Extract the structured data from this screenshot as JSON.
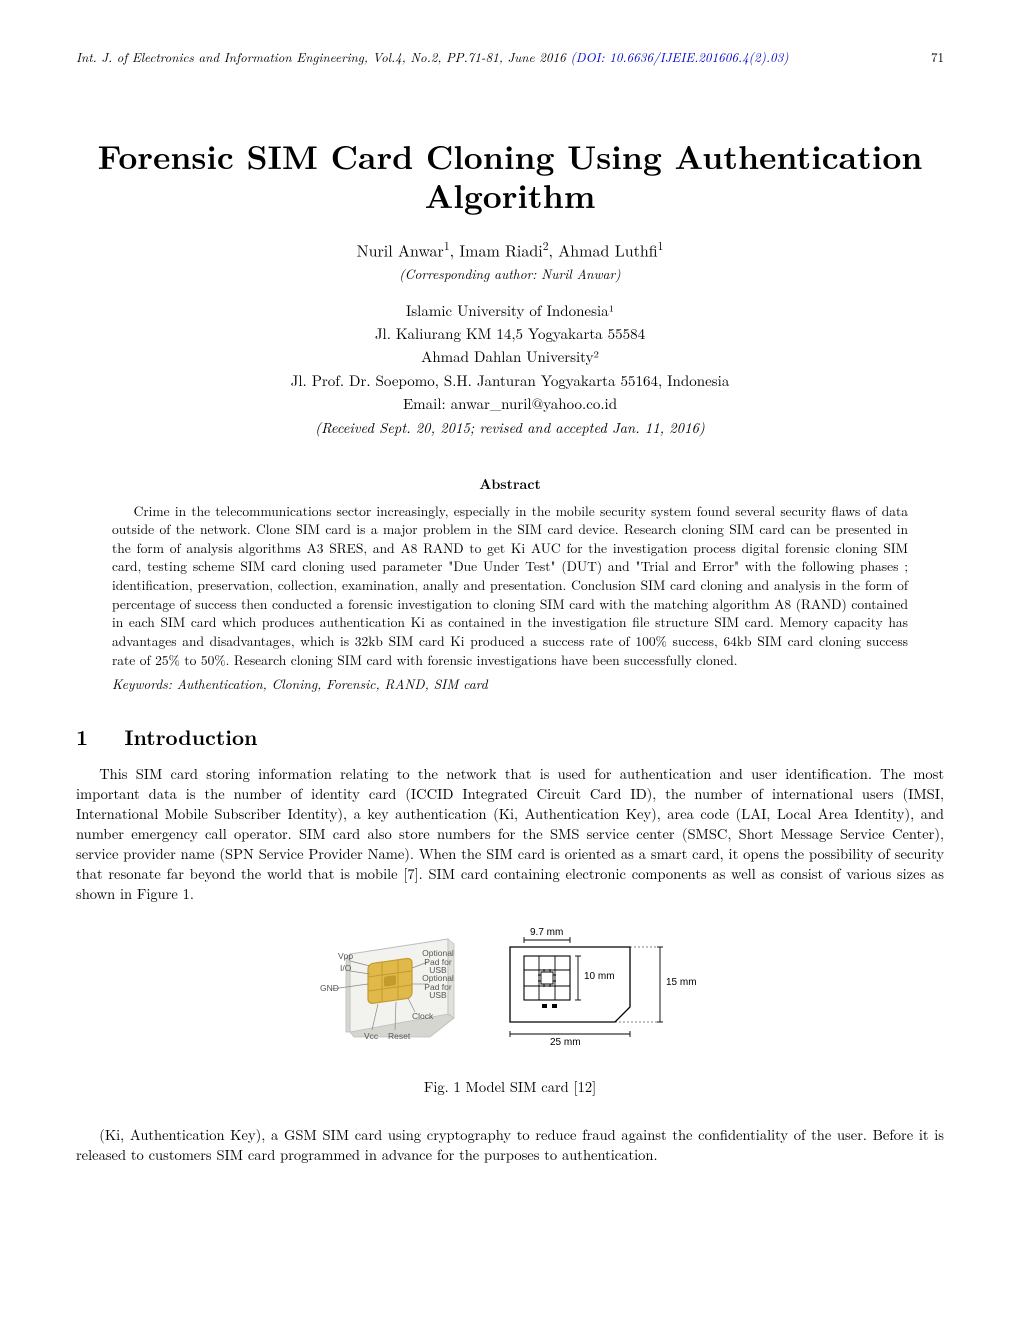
{
  "header": {
    "journal": "Int. J. of Electronics and Information Engineering, Vol.4, No.2, PP.71-81, June 2016 ",
    "doi": "(DOI: 10.6636/IJEIE.201606.4(2).03)",
    "page_number": "71"
  },
  "title": "Forensic SIM Card Cloning Using Authentication Algorithm",
  "authors": {
    "list_html": "Nuril Anwar<sup>1</sup>, Imam Riadi<sup>2</sup>, Ahmad Luthfi<sup>1</sup>",
    "corresponding": "(Corresponding author: Nuril Anwar)"
  },
  "affiliations": {
    "l1": "Islamic University of Indonesia¹",
    "l2": "Jl. Kaliurang KM 14,5 Yogyakarta 55584",
    "l3": "Ahmad Dahlan University²",
    "l4": "Jl. Prof. Dr. Soepomo, S.H. Janturan Yogyakarta 55164, Indonesia",
    "email": "Email: anwar_nuril@yahoo.co.id"
  },
  "received": "(Received Sept. 20, 2015; revised and accepted Jan. 11, 2016)",
  "abstract": {
    "heading": "Abstract",
    "body": "Crime in the telecommunications sector increasingly, especially in the mobile security system found several security flaws of data outside of the network. Clone SIM card is a major problem in the SIM card device. Research cloning SIM card can be presented in the form of analysis algorithms A3 SRES, and A8 RAND to get Ki AUC for the investigation process digital forensic cloning SIM card, testing scheme SIM card cloning used parameter \"Due Under Test\" (DUT) and \"Trial and Error\" with the following phases ; identification, preservation, collection, examination, anally and presentation. Conclusion SIM card cloning and analysis in the form of percentage of success then conducted a forensic investigation to cloning SIM card with the matching algorithm A8 (RAND) contained in each SIM card which produces authentication Ki as contained in the investigation file structure SIM card. Memory capacity has advantages and disadvantages, which is 32kb SIM card Ki produced a success rate of 100% success, 64kb SIM card cloning success rate of 25% to 50%. Research cloning SIM card with forensic investigations have been successfully cloned."
  },
  "keywords": "Keywords: Authentication, Cloning, Forensic, RAND, SIM card",
  "sections": {
    "s1": {
      "number": "1",
      "title": "Introduction",
      "p1": "This SIM card storing information relating to the network that is used for authentication and user identification. The most important data is the number of identity card (ICCID Integrated Circuit Card ID), the number of international users (IMSI, International Mobile Subscriber Identity), a key authentication (Ki, Authentication Key), area code (LAI, Local Area Identity), and number emergency call operator. SIM card also store numbers for the SMS service center (SMSC, Short Message Service Center), service provider name (SPN Service Provider Name). When the SIM card is oriented as a smart card, it opens the possibility of security that resonate far beyond the world that is mobile [7]. SIM card containing electronic components as well as consist of various sizes as shown in Figure 1.",
      "p2": "(Ki, Authentication Key), a GSM SIM card using cryptography to reduce fraud against the confidentiality of the user. Before it is released to customers SIM card programmed in advance for the purposes to authentication."
    }
  },
  "figure1": {
    "caption": "Fig. 1 Model SIM card [12]",
    "labels_3d": {
      "vpp": "Vpp",
      "io": "I/O",
      "optpad1": "Optional Pad for USB",
      "gnd": "GND",
      "optpad2": "Optional Pad for USB",
      "clock": "Clock",
      "vcc": "Vcc",
      "reset": "Reset"
    },
    "dims": {
      "w_small": "9.7 mm",
      "h_small": "10 mm",
      "h_large": "15 mm",
      "w_large": "25 mm"
    },
    "colors": {
      "card_fill": "#f2f2ef",
      "card_stroke": "#bdbdbd",
      "chip_gold": "#e1b94a",
      "chip_gold_dark": "#c29a2e",
      "schem_stroke": "#000000",
      "schem_chip_fill": "#ffffff"
    }
  }
}
